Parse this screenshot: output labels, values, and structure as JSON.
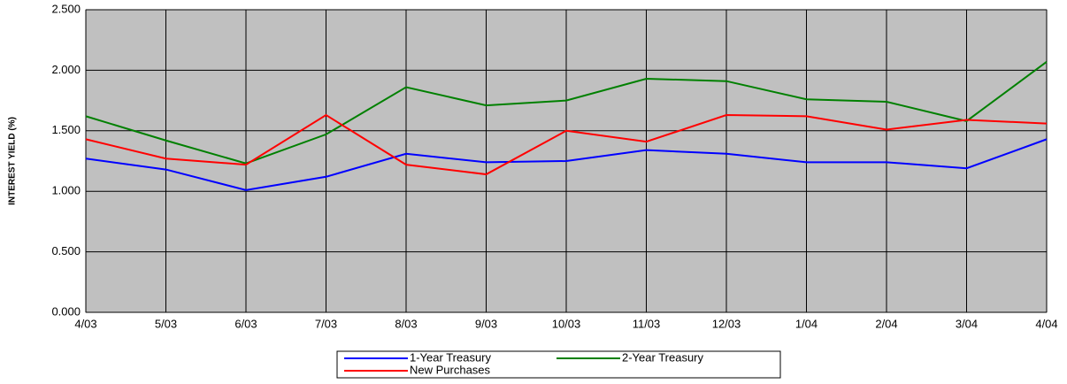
{
  "chart_data": {
    "type": "line",
    "y_label": "INTEREST YIELD (%)",
    "categories": [
      "4/03",
      "5/03",
      "6/03",
      "7/03",
      "8/03",
      "9/03",
      "10/03",
      "11/03",
      "12/03",
      "1/04",
      "2/04",
      "3/04",
      "4/04"
    ],
    "series": [
      {
        "name": "1-Year Treasury",
        "color": "#0000ff",
        "values": [
          1.27,
          1.18,
          1.01,
          1.12,
          1.31,
          1.24,
          1.25,
          1.34,
          1.31,
          1.24,
          1.24,
          1.19,
          1.43
        ]
      },
      {
        "name": "2-Year Treasury",
        "color": "#008000",
        "values": [
          1.62,
          1.42,
          1.23,
          1.47,
          1.86,
          1.71,
          1.75,
          1.93,
          1.91,
          1.76,
          1.74,
          1.58,
          2.07
        ]
      },
      {
        "name": "New Purchases",
        "color": "#ff0000",
        "values": [
          1.43,
          1.27,
          1.22,
          1.63,
          1.22,
          1.14,
          1.5,
          1.41,
          1.63,
          1.62,
          1.51,
          1.59,
          1.56
        ]
      }
    ],
    "ylim": [
      0,
      2.5
    ],
    "yticks": [
      {
        "value": 0,
        "label": "0.000"
      },
      {
        "value": 0.5,
        "label": "0.500"
      },
      {
        "value": 1,
        "label": "1.000"
      },
      {
        "value": 1.5,
        "label": "1.500"
      },
      {
        "value": 2,
        "label": "2.000"
      },
      {
        "value": 2.5,
        "label": "2.500"
      }
    ],
    "grid": true,
    "plot_background": "#c0c0c0"
  }
}
